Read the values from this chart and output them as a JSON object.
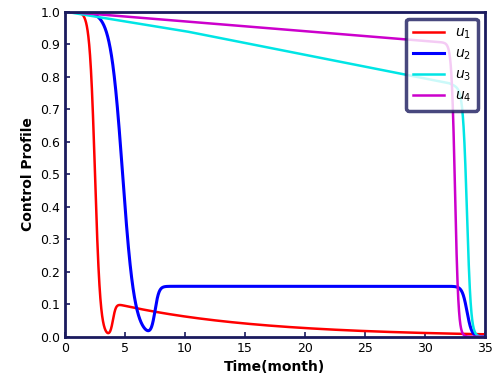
{
  "xlabel": "Time(month)",
  "ylabel": "Control Profile",
  "xlim": [
    0,
    35
  ],
  "ylim": [
    0,
    1
  ],
  "xticks": [
    0,
    5,
    10,
    15,
    20,
    25,
    30,
    35
  ],
  "yticks": [
    0.0,
    0.1,
    0.2,
    0.3,
    0.4,
    0.5,
    0.6,
    0.7,
    0.8,
    0.9,
    1.0
  ],
  "colors": {
    "u1": "#ff0000",
    "u2": "#0000ff",
    "u3": "#00e5e5",
    "u4": "#cc00cc"
  },
  "line_widths": {
    "u1": 1.8,
    "u2": 2.2,
    "u3": 1.8,
    "u4": 1.8
  },
  "background_color": "#ffffff",
  "spine_color": "#1a1a5e",
  "legend_edge_color": "#1a1a5e",
  "figsize": [
    5.0,
    3.87
  ],
  "dpi": 100
}
